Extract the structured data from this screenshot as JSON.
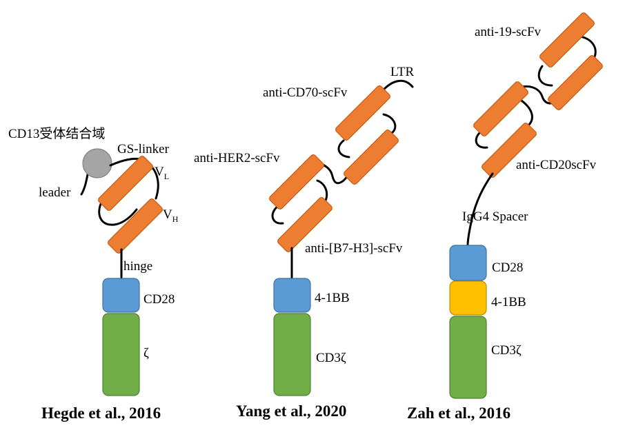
{
  "colors": {
    "scfv": "#ED7D31",
    "cd28": "#5B9BD5",
    "zeta": "#70AD47",
    "costim_yellow": "#FFC000",
    "receptor_binding": "#A5A5A5"
  },
  "panels": [
    {
      "caption": "Hegde et al., 2016",
      "labels": {
        "receptor": "CD13受体结合域",
        "gs_linker": "GS-linker",
        "leader": "leader",
        "vl_main": "V",
        "vl_sub": "L",
        "vh_main": "V",
        "vh_sub": "H",
        "hinge": "hinge",
        "costim": "CD28",
        "signal": "ζ"
      }
    },
    {
      "caption": "Yang et al., 2020",
      "labels": {
        "ltr": "LTR",
        "scfv_cd70": "anti-CD70-scFv",
        "scfv_her2": "anti-HER2-scFv",
        "scfv_b7h3": "anti-[B7-H3]-scFv",
        "costim": "4-1BB",
        "signal": "CD3ζ"
      }
    },
    {
      "caption": "Zah et al., 2016",
      "labels": {
        "scfv_19": "anti-19-scFv",
        "scfv_cd20": "anti-CD20scFv",
        "spacer": "IgG4 Spacer",
        "costim1": "CD28",
        "costim2": "4-1BB",
        "signal": "CD3ζ"
      }
    }
  ]
}
